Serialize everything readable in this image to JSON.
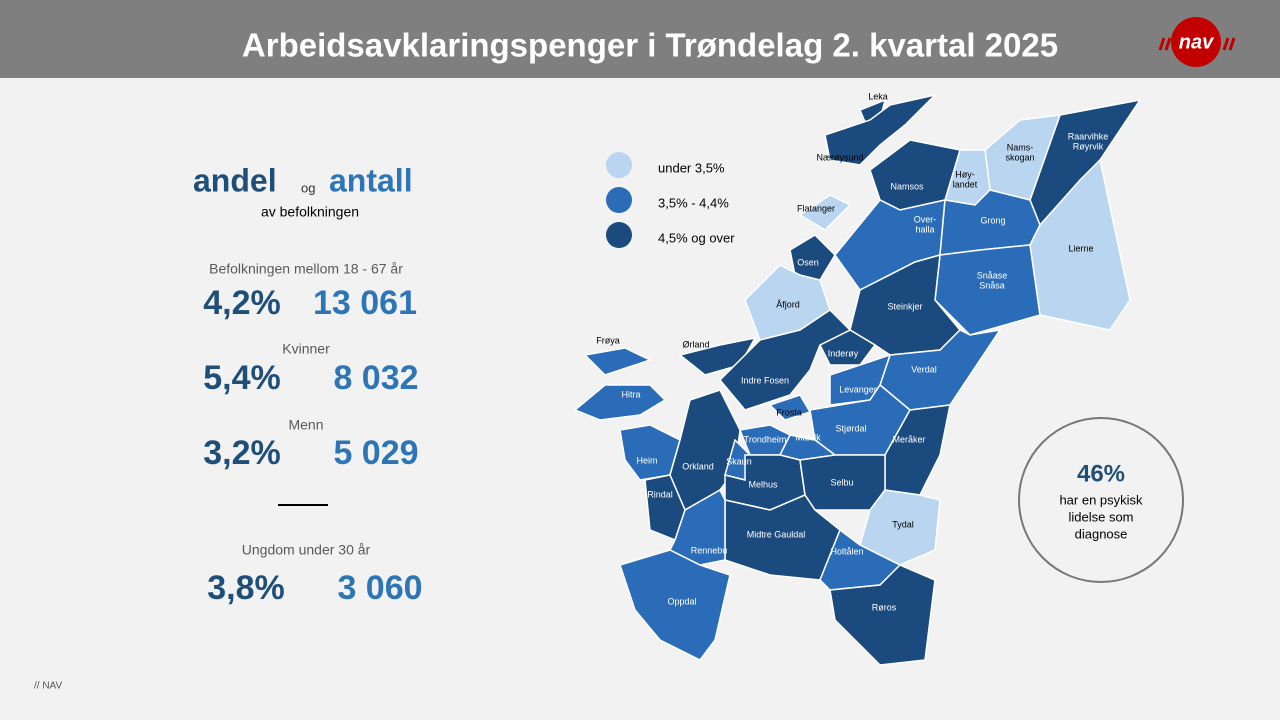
{
  "header": {
    "title": "Arbeidsavklaringspenger i Trøndelag 2. kvartal 2025",
    "logo": "nav"
  },
  "summary": {
    "heading": {
      "andel": "andel",
      "og": "og",
      "antall": "antall",
      "subtitle": "av befolkningen"
    },
    "groups": [
      {
        "label": "Befolkningen mellom 18 - 67 år",
        "percent": "4,2%",
        "count": "13 061"
      },
      {
        "label": "Kvinner",
        "percent": "5,4%",
        "count": "8 032"
      },
      {
        "label": "Menn",
        "percent": "3,2%",
        "count": "5 029"
      },
      {
        "label": "Ungdom under 30 år",
        "percent": "3,8%",
        "count": "3 060"
      }
    ]
  },
  "legend": [
    {
      "label": "under 3,5%",
      "color": "#b9d5f0"
    },
    {
      "label": "3,5% - 4,4%",
      "color": "#2b6cb8"
    },
    {
      "label": "4,5% og over",
      "color": "#1b4a7e"
    }
  ],
  "municipalities": [
    {
      "name": [
        "Leka"
      ],
      "level": 2
    },
    {
      "name": [
        "Nærøysund"
      ],
      "level": 2
    },
    {
      "name": [
        "Raarvihke",
        "Røyrvik"
      ],
      "level": 2
    },
    {
      "name": [
        "Nams-",
        "skogan"
      ],
      "level": 0
    },
    {
      "name": [
        "Høy-",
        "landet"
      ],
      "level": 0
    },
    {
      "name": [
        "Namsos"
      ],
      "level": 2
    },
    {
      "name": [
        "Flatanger"
      ],
      "level": 0
    },
    {
      "name": [
        "Over-",
        "halla"
      ],
      "level": 1
    },
    {
      "name": [
        "Grong"
      ],
      "level": 1
    },
    {
      "name": [
        "Lierne"
      ],
      "level": 0
    },
    {
      "name": [
        "Osen"
      ],
      "level": 2
    },
    {
      "name": [
        "Snåase",
        "Snåsa"
      ],
      "level": 1
    },
    {
      "name": [
        "Åfjord"
      ],
      "level": 0
    },
    {
      "name": [
        "Steinkjer"
      ],
      "level": 2
    },
    {
      "name": [
        "Frøya"
      ],
      "level": 1
    },
    {
      "name": [
        "Ørland"
      ],
      "level": 2
    },
    {
      "name": [
        "Inderøy"
      ],
      "level": 2
    },
    {
      "name": [
        "Indre Fosen"
      ],
      "level": 2
    },
    {
      "name": [
        "Verdal"
      ],
      "level": 1
    },
    {
      "name": [
        "Levanger"
      ],
      "level": 1
    },
    {
      "name": [
        "Hitra"
      ],
      "level": 1
    },
    {
      "name": [
        "Frosta"
      ],
      "level": 1
    },
    {
      "name": [
        "Stjørdal"
      ],
      "level": 1
    },
    {
      "name": [
        "Meråker"
      ],
      "level": 2
    },
    {
      "name": [
        "Trondheim"
      ],
      "level": 1
    },
    {
      "name": [
        "Malvik"
      ],
      "level": 1
    },
    {
      "name": [
        "Heim"
      ],
      "level": 1
    },
    {
      "name": [
        "Orkland"
      ],
      "level": 2
    },
    {
      "name": [
        "Skaun"
      ],
      "level": 1
    },
    {
      "name": [
        "Melhus"
      ],
      "level": 2
    },
    {
      "name": [
        "Selbu"
      ],
      "level": 2
    },
    {
      "name": [
        "Rindal"
      ],
      "level": 2
    },
    {
      "name": [
        "Tydal"
      ],
      "level": 0
    },
    {
      "name": [
        "Midtre Gauldal"
      ],
      "level": 2
    },
    {
      "name": [
        "Rennebu"
      ],
      "level": 1
    },
    {
      "name": [
        "Holtålen"
      ],
      "level": 1
    },
    {
      "name": [
        "Oppdal"
      ],
      "level": 1
    },
    {
      "name": [
        "Røros"
      ],
      "level": 2
    }
  ],
  "callout": {
    "value": "46%",
    "lines": [
      "har en psykisk",
      "lidelse som",
      "diagnose"
    ]
  },
  "footer": "// NAV"
}
